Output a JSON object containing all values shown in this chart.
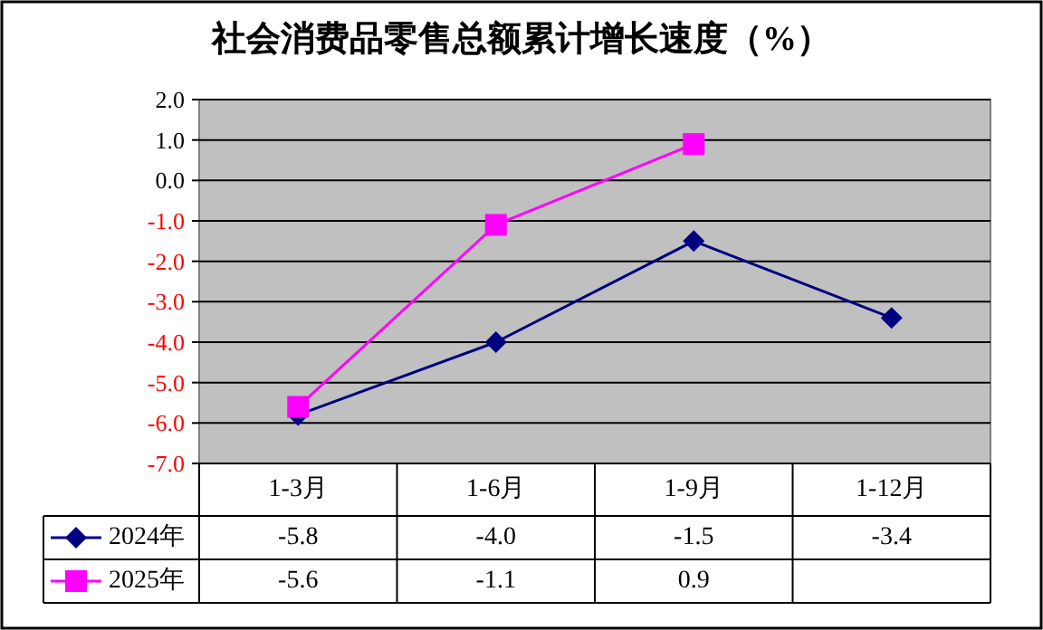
{
  "chart_data": {
    "type": "line",
    "title": "社会消费品零售总额累计增长速度（%）",
    "categories": [
      "1-3月",
      "1-6月",
      "1-9月",
      "1-12月"
    ],
    "series": [
      {
        "name": "2024年",
        "color": "#000080",
        "marker": "diamond",
        "values": [
          -5.8,
          -4.0,
          -1.5,
          -3.4
        ],
        "value_labels": [
          "-5.8",
          "-4.0",
          "-1.5",
          "-3.4"
        ]
      },
      {
        "name": "2025年",
        "color": "#ff00ff",
        "marker": "square",
        "values": [
          -5.6,
          -1.1,
          0.9,
          null
        ],
        "value_labels": [
          "-5.6",
          "-1.1",
          "0.9",
          null
        ]
      }
    ],
    "ylim": [
      -7,
      2
    ],
    "yticks": [
      {
        "value": -7,
        "label": "-7.0"
      },
      {
        "value": -6,
        "label": "-6.0"
      },
      {
        "value": -5,
        "label": "-5.0"
      },
      {
        "value": -4,
        "label": "-4.0"
      },
      {
        "value": -3,
        "label": "-3.0"
      },
      {
        "value": -2,
        "label": "-2.0"
      },
      {
        "value": -1,
        "label": "-1.0"
      },
      {
        "value": 0,
        "label": "0.0"
      },
      {
        "value": 1,
        "label": "1.0"
      },
      {
        "value": 2,
        "label": "2.0"
      }
    ],
    "grid": "y",
    "legend": "bottom"
  }
}
